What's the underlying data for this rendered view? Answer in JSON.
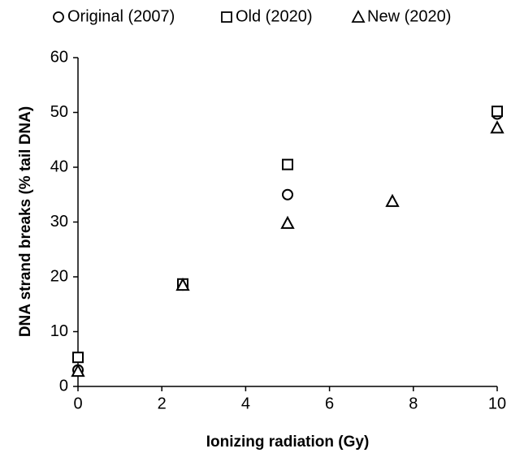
{
  "chart_data": {
    "type": "scatter",
    "x_label": "Ionizing radiation (Gy)",
    "y_label": "DNA strand breaks (% tail DNA)",
    "xlim": [
      0,
      10
    ],
    "xticks": [
      0,
      2,
      4,
      6,
      8,
      10
    ],
    "ylim": [
      0,
      60
    ],
    "yticks": [
      0,
      10,
      20,
      30,
      40,
      50,
      60
    ],
    "grid": false,
    "legend": "top",
    "series": [
      {
        "name": "Original (2007)",
        "color": "#000000",
        "marker": "circle",
        "x": [
          0,
          2.5,
          5,
          10
        ],
        "values": [
          3,
          18.5,
          35,
          49.7
        ]
      },
      {
        "name": "Old (2020)",
        "color": "#000000",
        "marker": "square",
        "x": [
          0,
          2.5,
          5,
          10
        ],
        "values": [
          5.3,
          18.7,
          40.5,
          50.2
        ]
      },
      {
        "name": "New (2020)",
        "color": "#000000",
        "marker": "triangle",
        "x": [
          0,
          2.5,
          5,
          7.5,
          10
        ],
        "values": [
          2.8,
          18.5,
          29.8,
          33.8,
          47.2
        ]
      }
    ]
  }
}
